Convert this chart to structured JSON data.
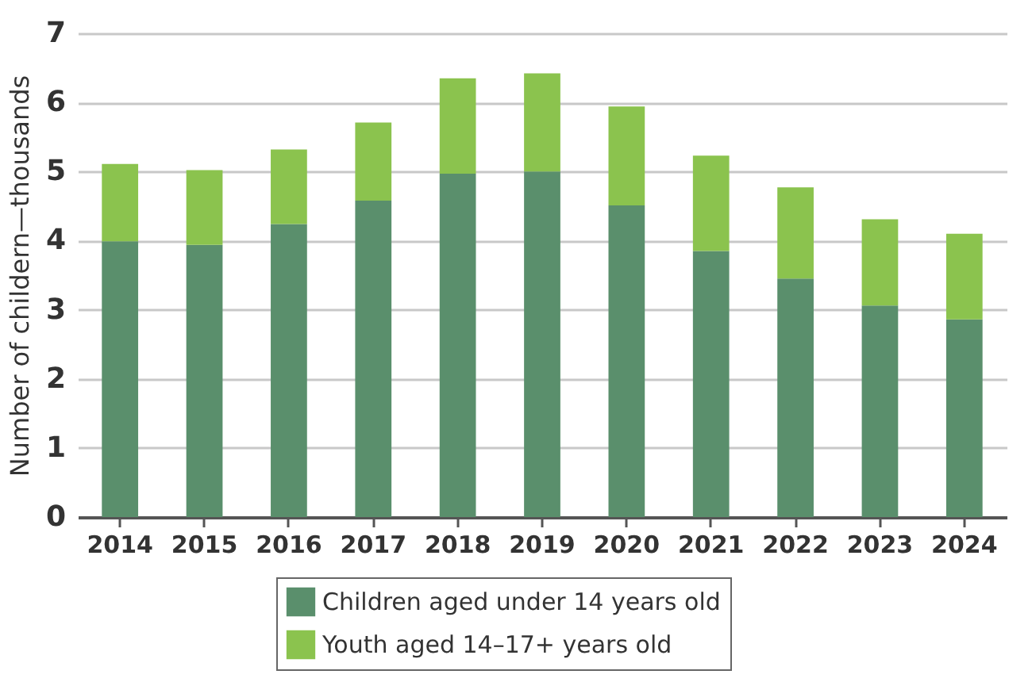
{
  "chart_data": {
    "type": "bar",
    "stacked": true,
    "ylabel": "Number of childern—thousands",
    "categories": [
      "2014",
      "2015",
      "2016",
      "2017",
      "2018",
      "2019",
      "2020",
      "2021",
      "2022",
      "2023",
      "2024"
    ],
    "series": [
      {
        "name": "Children aged under 14 years old",
        "color": "#5a8f6c",
        "values": [
          3.99,
          3.94,
          4.24,
          4.58,
          4.97,
          5.0,
          4.51,
          3.85,
          3.45,
          3.06,
          2.86
        ]
      },
      {
        "name": "Youth aged 14–17+ years old",
        "color": "#8bc34e",
        "values": [
          1.12,
          1.08,
          1.08,
          1.13,
          1.38,
          1.42,
          1.43,
          1.38,
          1.32,
          1.25,
          1.24
        ]
      }
    ],
    "ylim": [
      0,
      7
    ],
    "yticks": [
      0,
      1,
      2,
      3,
      4,
      5,
      6,
      7
    ],
    "grid": "y",
    "legend": "bottom"
  }
}
